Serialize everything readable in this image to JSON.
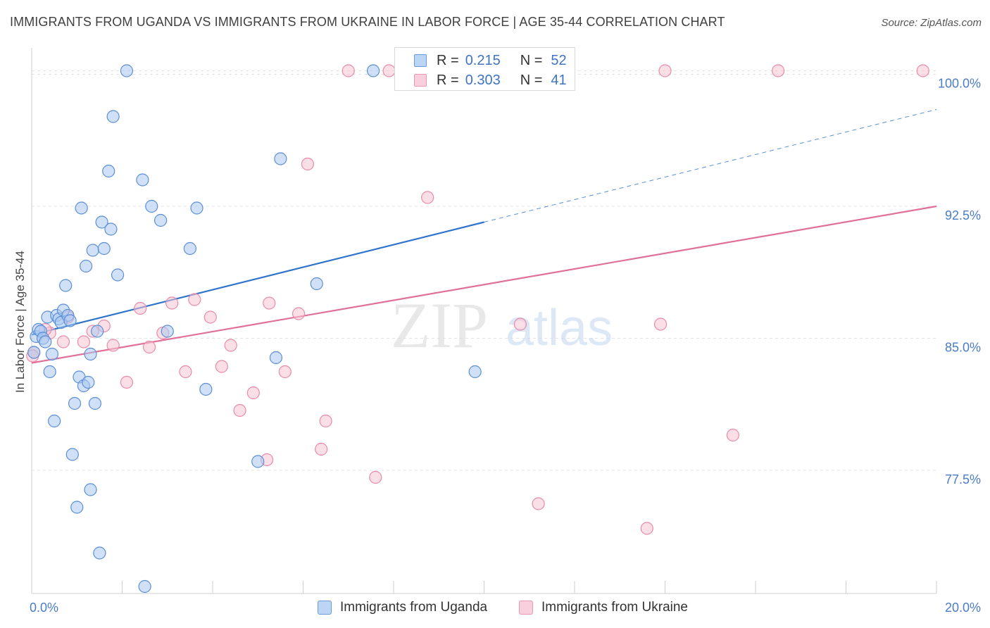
{
  "title": "IMMIGRANTS FROM UGANDA VS IMMIGRANTS FROM UKRAINE IN LABOR FORCE | AGE 35-44 CORRELATION CHART",
  "source": "Source: ZipAtlas.com",
  "watermark": {
    "zip": "ZIP",
    "atlas": "atlas"
  },
  "colors": {
    "uganda_fill": "#a9c8f0",
    "uganda_stroke": "#5b8ed6",
    "uganda_line": "#2f74cc",
    "ukraine_fill": "#f6c4d4",
    "ukraine_stroke": "#e88aa8",
    "ukraine_line": "#e0709a",
    "tick_text": "#4a7cc7",
    "grid": "#e3e3e3"
  },
  "legend_top": [
    {
      "r_label": "R =",
      "r_value": "0.215",
      "n_label": "N =",
      "n_value": "52"
    },
    {
      "r_label": "R =",
      "r_value": "0.303",
      "n_label": "N =",
      "n_value": "41"
    }
  ],
  "chart_data": {
    "type": "scatter",
    "title": "IMMIGRANTS FROM UGANDA VS IMMIGRANTS FROM UKRAINE IN LABOR FORCE | AGE 35-44 CORRELATION CHART",
    "xlabel": "",
    "ylabel": "In Labor Force | Age 35-44",
    "xlim": [
      0,
      20
    ],
    "ylim": [
      70.5,
      101.5
    ],
    "x_tick_labels": [
      "0.0%",
      "20.0%"
    ],
    "y_ticks": [
      77.5,
      85.0,
      92.5,
      100.0
    ],
    "y_tick_labels": [
      "77.5%",
      "85.0%",
      "92.5%",
      "100.0%"
    ],
    "grid": true,
    "legend_position": "top-center",
    "series": [
      {
        "name": "Immigrants from Uganda",
        "R": 0.215,
        "N": 52,
        "trend": {
          "x": [
            0,
            10
          ],
          "y": [
            85.2,
            91.6
          ],
          "dashed_extension_x": [
            10,
            20
          ],
          "dashed_extension_y": [
            91.6,
            98.0
          ]
        },
        "points": [
          [
            0.1,
            85.1
          ],
          [
            0.15,
            85.5
          ],
          [
            0.2,
            85.4
          ],
          [
            0.25,
            85.0
          ],
          [
            0.3,
            84.8
          ],
          [
            0.35,
            86.2
          ],
          [
            0.4,
            83.1
          ],
          [
            0.45,
            84.1
          ],
          [
            0.5,
            80.3
          ],
          [
            0.55,
            86.3
          ],
          [
            0.6,
            86.1
          ],
          [
            0.65,
            85.9
          ],
          [
            0.7,
            86.6
          ],
          [
            0.75,
            88.0
          ],
          [
            0.8,
            86.3
          ],
          [
            0.85,
            86.0
          ],
          [
            0.9,
            78.4
          ],
          [
            0.95,
            81.3
          ],
          [
            1.0,
            75.4
          ],
          [
            1.05,
            82.8
          ],
          [
            1.1,
            92.4
          ],
          [
            1.15,
            82.3
          ],
          [
            1.2,
            89.1
          ],
          [
            1.25,
            82.5
          ],
          [
            1.3,
            76.4
          ],
          [
            1.3,
            84.1
          ],
          [
            1.35,
            90.0
          ],
          [
            1.4,
            81.3
          ],
          [
            1.45,
            85.4
          ],
          [
            1.5,
            72.8
          ],
          [
            1.55,
            91.6
          ],
          [
            1.6,
            90.1
          ],
          [
            1.7,
            94.5
          ],
          [
            1.75,
            91.2
          ],
          [
            1.8,
            97.6
          ],
          [
            1.9,
            88.6
          ],
          [
            2.1,
            100.2
          ],
          [
            2.45,
            94.0
          ],
          [
            2.5,
            70.9
          ],
          [
            2.65,
            92.5
          ],
          [
            2.85,
            91.7
          ],
          [
            3.0,
            85.4
          ],
          [
            3.5,
            90.1
          ],
          [
            3.65,
            92.4
          ],
          [
            3.85,
            82.1
          ],
          [
            5.0,
            78.0
          ],
          [
            5.4,
            83.9
          ],
          [
            5.5,
            95.2
          ],
          [
            6.3,
            88.1
          ],
          [
            7.55,
            100.2
          ],
          [
            9.8,
            83.1
          ],
          [
            0.05,
            84.2
          ]
        ]
      },
      {
        "name": "Immigrants from Ukraine",
        "R": 0.303,
        "N": 41,
        "trend": {
          "x": [
            0,
            20
          ],
          "y": [
            83.6,
            92.5
          ]
        },
        "points": [
          [
            0.05,
            84.2
          ],
          [
            0.4,
            85.3
          ],
          [
            0.7,
            84.8
          ],
          [
            0.8,
            86.2
          ],
          [
            1.15,
            84.8
          ],
          [
            1.35,
            85.4
          ],
          [
            1.6,
            85.7
          ],
          [
            1.8,
            84.6
          ],
          [
            2.1,
            82.5
          ],
          [
            2.4,
            86.7
          ],
          [
            2.6,
            84.5
          ],
          [
            2.9,
            85.3
          ],
          [
            3.1,
            87.0
          ],
          [
            3.4,
            83.1
          ],
          [
            3.6,
            87.2
          ],
          [
            3.95,
            86.2
          ],
          [
            4.2,
            83.4
          ],
          [
            4.4,
            84.6
          ],
          [
            4.6,
            80.9
          ],
          [
            4.9,
            81.9
          ],
          [
            5.2,
            78.1
          ],
          [
            5.25,
            87.0
          ],
          [
            5.6,
            83.1
          ],
          [
            5.9,
            86.4
          ],
          [
            6.1,
            94.9
          ],
          [
            6.4,
            78.7
          ],
          [
            6.5,
            80.3
          ],
          [
            7.0,
            100.2
          ],
          [
            7.6,
            77.1
          ],
          [
            7.9,
            100.2
          ],
          [
            8.75,
            93.0
          ],
          [
            10.8,
            85.8
          ],
          [
            11.2,
            75.6
          ],
          [
            13.6,
            74.2
          ],
          [
            13.9,
            85.8
          ],
          [
            14.0,
            100.2
          ],
          [
            15.5,
            79.5
          ],
          [
            16.5,
            100.2
          ],
          [
            19.7,
            100.2
          ],
          [
            0.02,
            84.0
          ],
          [
            0.3,
            85.5
          ]
        ]
      }
    ]
  },
  "legend_bottom": [
    {
      "label": "Immigrants from Uganda"
    },
    {
      "label": "Immigrants from Ukraine"
    }
  ]
}
